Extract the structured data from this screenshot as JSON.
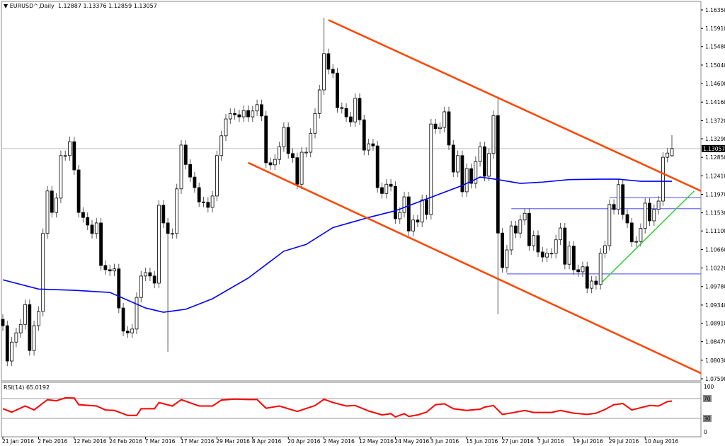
{
  "header": {
    "symbol": "EURUSD^,Daily",
    "ohlc_text": "1.12887 1.13376 1.12859 1.13057",
    "icon": "triangle-down-icon"
  },
  "rsi_header": "RSI(14) 65.0192",
  "colors": {
    "trendline": "#ff4500",
    "moving_average": "#0000ff",
    "support_lines": "#6b6bff",
    "uptrend_line": "#32cd32",
    "rsi": "#ff0000",
    "bull_body": "#ffffff",
    "bear_body": "#000000"
  },
  "chart_data": [
    {
      "type": "candlestick",
      "title": "EURUSD^,Daily",
      "ylim": [
        1.0759,
        1.1635
      ],
      "y_ticks": [
        "1.16350",
        "1.15910",
        "1.15480",
        "1.15040",
        "1.14600",
        "1.14160",
        "1.13720",
        "1.13290",
        "1.12850",
        "1.12410",
        "1.11970",
        "1.11530",
        "1.11100",
        "1.10660",
        "1.10220",
        "1.09780",
        "1.09340",
        "1.08910",
        "1.08470",
        "1.08030",
        "1.07590"
      ],
      "current_price": "1.13057",
      "x_tick_labels": [
        {
          "bar": 0,
          "label": "21 Jan 2016"
        },
        {
          "bar": 8,
          "label": "2 Feb 2016"
        },
        {
          "bar": 16,
          "label": "12 Feb 2016"
        },
        {
          "bar": 24,
          "label": "24 Feb 2016"
        },
        {
          "bar": 32,
          "label": "7 Mar 2016"
        },
        {
          "bar": 40,
          "label": "17 Mar 2016"
        },
        {
          "bar": 48,
          "label": "29 Mar 2016"
        },
        {
          "bar": 56,
          "label": "8 Apr 2016"
        },
        {
          "bar": 64,
          "label": "20 Apr 2016"
        },
        {
          "bar": 72,
          "label": "2 May 2016"
        },
        {
          "bar": 80,
          "label": "12 May 2016"
        },
        {
          "bar": 88,
          "label": "24 May 2016"
        },
        {
          "bar": 96,
          "label": "3 Jun 2016"
        },
        {
          "bar": 104,
          "label": "15 Jun 2016"
        },
        {
          "bar": 112,
          "label": "27 Jun 2016"
        },
        {
          "bar": 120,
          "label": "7 Jul 2016"
        },
        {
          "bar": 128,
          "label": "19 Jul 2016"
        },
        {
          "bar": 136,
          "label": "29 Jul 2016"
        },
        {
          "bar": 144,
          "label": "10 Aug 2016"
        }
      ],
      "closes": [
        1.0885,
        1.0801,
        1.0846,
        1.0868,
        1.0888,
        1.0935,
        1.0826,
        1.0885,
        1.0919,
        1.1104,
        1.1205,
        1.1154,
        1.1188,
        1.1289,
        1.1289,
        1.1322,
        1.1255,
        1.1154,
        1.1142,
        1.1124,
        1.1104,
        1.1129,
        1.1028,
        1.1018,
        1.1015,
        1.102,
        1.0927,
        1.0872,
        1.0868,
        1.0877,
        1.0952,
        1.1003,
        1.1011,
        1.1003,
        1.0986,
        1.1171,
        1.1129,
        1.1104,
        1.1104,
        1.121,
        1.1314,
        1.1268,
        1.1238,
        1.1213,
        1.1179,
        1.1178,
        1.1166,
        1.1193,
        1.1289,
        1.1336,
        1.1376,
        1.1389,
        1.1386,
        1.1381,
        1.1396,
        1.1381,
        1.1395,
        1.141,
        1.1383,
        1.1272,
        1.1267,
        1.128,
        1.131,
        1.1356,
        1.1294,
        1.1284,
        1.1221,
        1.1297,
        1.1297,
        1.1342,
        1.1389,
        1.1445,
        1.1531,
        1.1494,
        1.1485,
        1.1403,
        1.1401,
        1.1381,
        1.1369,
        1.1425,
        1.1374,
        1.1302,
        1.1317,
        1.1312,
        1.1213,
        1.1199,
        1.1221,
        1.1216,
        1.1139,
        1.1154,
        1.1191,
        1.111,
        1.1136,
        1.1131,
        1.1184,
        1.1149,
        1.1364,
        1.1353,
        1.1356,
        1.1393,
        1.1314,
        1.125,
        1.1289,
        1.1203,
        1.1258,
        1.1223,
        1.1275,
        1.131,
        1.124,
        1.1294,
        1.1384,
        1.1105,
        1.1023,
        1.1065,
        1.1122,
        1.1105,
        1.1136,
        1.1152,
        1.1075,
        1.1099,
        1.106,
        1.1048,
        1.1057,
        1.1057,
        1.1089,
        1.1117,
        1.1031,
        1.1074,
        1.1018,
        1.1013,
        1.1025,
        1.0974,
        1.0991,
        1.0983,
        1.1057,
        1.1075,
        1.1173,
        1.1161,
        1.122,
        1.1149,
        1.1129,
        1.1084,
        1.1085,
        1.1116,
        1.1176,
        1.1134,
        1.1161,
        1.1181,
        1.1285,
        1.1295,
        1.13057
      ],
      "last_bar": {
        "open": 1.12887,
        "high": 1.13376,
        "low": 1.12859,
        "close": 1.13057
      },
      "wick_extremes": [
        {
          "bar": 37,
          "low": 1.0823
        },
        {
          "bar": 72,
          "high": 1.1616
        },
        {
          "bar": 111,
          "high": 1.1429,
          "low": 1.0912
        }
      ],
      "moving_average": [
        [
          0,
          1.0994
        ],
        [
          8,
          1.0972
        ],
        [
          16,
          1.0969
        ],
        [
          24,
          1.0964
        ],
        [
          32,
          1.0927
        ],
        [
          36,
          1.0917
        ],
        [
          41,
          1.0924
        ],
        [
          47,
          1.0949
        ],
        [
          55,
          1.0998
        ],
        [
          63,
          1.1062
        ],
        [
          68,
          1.1078
        ],
        [
          74,
          1.1118
        ],
        [
          82,
          1.1142
        ],
        [
          88,
          1.1158
        ],
        [
          95,
          1.1186
        ],
        [
          103,
          1.1218
        ],
        [
          107,
          1.1238
        ],
        [
          111,
          1.1232
        ],
        [
          116,
          1.1223
        ],
        [
          121,
          1.1226
        ],
        [
          127,
          1.1232
        ],
        [
          134,
          1.1233
        ],
        [
          138,
          1.1233
        ],
        [
          143,
          1.1228
        ],
        [
          150,
          1.1228
        ]
      ],
      "trendlines": [
        {
          "kind": "channel-upper",
          "from": [
            73,
            1.1611
          ],
          "to": [
            157,
            1.1205
          ]
        },
        {
          "kind": "channel-lower",
          "from": [
            55,
            1.1272
          ],
          "to": [
            157,
            1.0772
          ]
        },
        {
          "kind": "uptrend",
          "from": [
            134.3,
            1.0988
          ],
          "to": [
            155,
            1.1205
          ]
        }
      ],
      "horizontal_levels": [
        {
          "from_bar": 113,
          "price": 1.1008
        },
        {
          "from_bar": 114,
          "price": 1.1163
        },
        {
          "from_bar": 136,
          "price": 1.1189
        }
      ]
    },
    {
      "type": "line",
      "title": "RSI(14) 65.0192",
      "ylim": [
        0,
        100
      ],
      "y_ticks": [
        "100",
        "70",
        "30",
        "0"
      ],
      "levels": [
        70,
        30
      ],
      "rsi_points": [
        [
          0,
          49.5
        ],
        [
          2,
          42.7
        ],
        [
          5,
          55
        ],
        [
          7,
          47
        ],
        [
          8,
          54
        ],
        [
          10,
          67.7
        ],
        [
          12,
          65.5
        ],
        [
          14,
          71.4
        ],
        [
          16,
          71
        ],
        [
          17,
          57.7
        ],
        [
          21,
          55
        ],
        [
          23,
          47
        ],
        [
          25,
          46
        ],
        [
          28,
          36
        ],
        [
          30,
          36
        ],
        [
          31,
          49.5
        ],
        [
          34,
          49.5
        ],
        [
          35,
          62
        ],
        [
          38,
          55
        ],
        [
          40,
          67.7
        ],
        [
          44,
          55
        ],
        [
          47,
          55
        ],
        [
          49,
          67
        ],
        [
          52,
          69
        ],
        [
          55,
          68
        ],
        [
          57,
          68
        ],
        [
          59,
          50.5
        ],
        [
          62,
          55
        ],
        [
          66,
          44
        ],
        [
          70,
          56
        ],
        [
          72,
          68.6
        ],
        [
          74,
          62
        ],
        [
          77,
          55
        ],
        [
          79,
          56
        ],
        [
          82,
          45
        ],
        [
          85,
          37
        ],
        [
          87,
          39.5
        ],
        [
          88,
          33
        ],
        [
          90,
          39.5
        ],
        [
          91,
          34
        ],
        [
          93,
          37
        ],
        [
          95,
          42.7
        ],
        [
          97,
          57.7
        ],
        [
          99,
          59.5
        ],
        [
          101,
          49.5
        ],
        [
          104,
          46
        ],
        [
          107,
          48.6
        ],
        [
          108,
          52.7
        ],
        [
          110,
          56
        ],
        [
          112,
          38
        ],
        [
          114,
          41
        ],
        [
          117,
          46
        ],
        [
          119,
          42
        ],
        [
          123,
          42
        ],
        [
          125,
          46
        ],
        [
          128,
          40.5
        ],
        [
          131,
          38
        ],
        [
          133,
          40.5
        ],
        [
          135,
          48
        ],
        [
          137,
          57.7
        ],
        [
          139,
          60
        ],
        [
          141,
          47
        ],
        [
          145,
          56
        ],
        [
          147,
          55
        ],
        [
          149,
          64
        ],
        [
          150,
          65
        ]
      ]
    }
  ]
}
